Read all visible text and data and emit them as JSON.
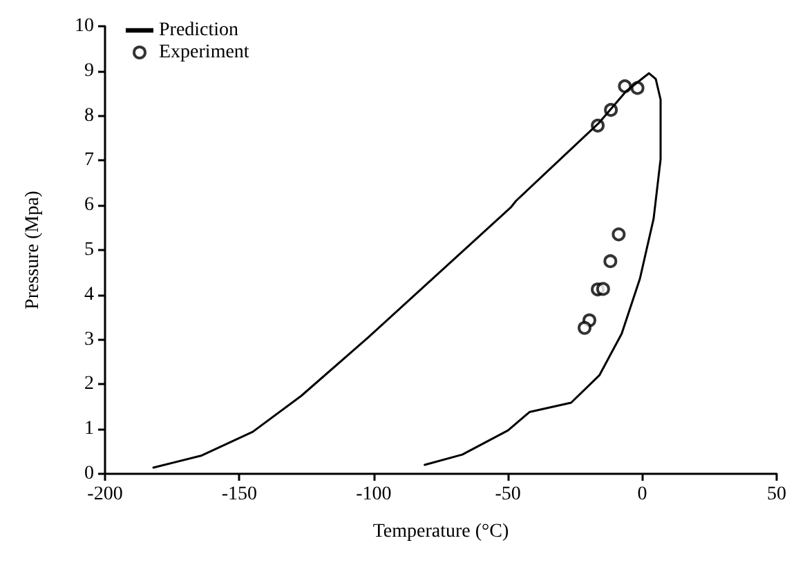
{
  "chart_data": {
    "type": "line",
    "xlabel": "Temperature (°C)",
    "ylabel": "Pressure (Mpa)",
    "xlim": [
      -200,
      50
    ],
    "xticks": [
      -200,
      -150,
      -100,
      -50,
      0,
      50
    ],
    "ylim": [
      0,
      10
    ],
    "yticks": [
      0,
      1,
      2,
      3,
      4,
      5,
      6,
      7,
      8,
      9,
      10
    ],
    "grid": false,
    "legend": "top left",
    "line_style": "solid",
    "series": [
      {
        "name": "Prediction",
        "marker": "none",
        "color": "#000000",
        "x": [
          -182,
          -164,
          -145,
          -127,
          -102,
          -81,
          -64,
          -49,
          -47,
          -16,
          -6,
          2.5,
          5,
          6.8,
          6.8,
          4.2,
          -0.9,
          -7.7,
          -16,
          -26.5,
          -42,
          -50,
          -67,
          -81
        ],
        "values": [
          0.14,
          0.41,
          0.94,
          1.74,
          3.05,
          4.2,
          5.13,
          5.95,
          6.1,
          7.85,
          8.55,
          8.95,
          8.82,
          8.36,
          7.03,
          5.7,
          4.36,
          3.13,
          2.2,
          1.59,
          1.38,
          0.97,
          0.43,
          0.2
        ]
      },
      {
        "name": "Experiment",
        "type": "scatter",
        "marker": "circle",
        "color": "#000000",
        "x": [
          -6.5,
          -1.8,
          -11.7,
          -16.6,
          -8.8,
          -11.9,
          -16.6,
          -14.6,
          -19.7,
          -21.5
        ],
        "values": [
          8.66,
          8.62,
          8.13,
          7.78,
          5.35,
          4.75,
          4.12,
          4.13,
          3.43,
          3.26
        ]
      }
    ]
  }
}
